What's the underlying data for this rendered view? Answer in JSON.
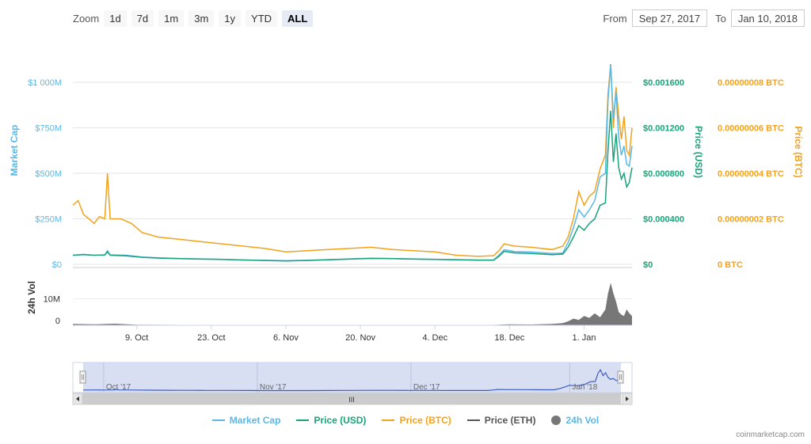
{
  "toolbar": {
    "zoom_label": "Zoom",
    "buttons": [
      "1d",
      "7d",
      "1m",
      "3m",
      "1y",
      "YTD",
      "ALL"
    ],
    "active_index": 6
  },
  "range": {
    "from_label": "From",
    "from_value": "Sep 27, 2017",
    "to_label": "To",
    "to_value": "Jan 10, 2018"
  },
  "colors": {
    "market_cap": "#5ab8e6",
    "price_usd": "#1aa37a",
    "price_btc": "#f4a21c",
    "price_eth": "#555555",
    "volume": "#777777"
  },
  "legend": {
    "market_cap": "Market Cap",
    "price_usd": "Price (USD)",
    "price_btc": "Price (BTC)",
    "price_eth": "Price (ETH)",
    "volume": "24h Vol"
  },
  "credit": "coinmarketcap.com",
  "navigator": {
    "labels": [
      "Oct '17",
      "Nov '17",
      "Dec '17",
      "Jan '18"
    ],
    "scroll_grip": "III"
  },
  "chart_data": {
    "type": "line",
    "x_tick_labels": [
      "9. Oct",
      "23. Oct",
      "6. Nov",
      "20. Nov",
      "4. Dec",
      "18. Dec",
      "1. Jan"
    ],
    "x_tick_days": [
      12,
      26,
      40,
      54,
      68,
      82,
      96
    ],
    "x_range_days": [
      0,
      105
    ],
    "y_axes": {
      "market_cap": {
        "label": "Market Cap",
        "ticks": [
          "$0",
          "$250M",
          "$500M",
          "$750M",
          "$1 000M"
        ],
        "range": [
          0,
          1000
        ]
      },
      "price_usd": {
        "label": "Price (USD)",
        "ticks": [
          "$0",
          "$0.000400",
          "$0.000800",
          "$0.001200",
          "$0.001600"
        ],
        "range": [
          0,
          0.0016
        ]
      },
      "price_btc": {
        "label": "Price (BTC)",
        "ticks": [
          "0 BTC",
          "0.00000002 BTC",
          "0.00000004 BTC",
          "0.00000006 BTC",
          "0.00000008 BTC"
        ],
        "range": [
          0,
          8e-08
        ]
      },
      "volume": {
        "label": "24h Vol",
        "ticks": [
          "0",
          "10M"
        ],
        "range": [
          0,
          20
        ]
      }
    },
    "series": [
      {
        "name": "Market Cap",
        "unit": "$M",
        "points": [
          [
            0,
            50
          ],
          [
            2,
            55
          ],
          [
            4,
            50
          ],
          [
            6,
            52
          ],
          [
            6.5,
            75
          ],
          [
            7,
            52
          ],
          [
            10,
            50
          ],
          [
            13,
            40
          ],
          [
            16,
            36
          ],
          [
            20,
            32
          ],
          [
            24,
            30
          ],
          [
            28,
            28
          ],
          [
            32,
            24
          ],
          [
            36,
            22
          ],
          [
            40,
            20
          ],
          [
            44,
            22
          ],
          [
            48,
            26
          ],
          [
            52,
            30
          ],
          [
            56,
            34
          ],
          [
            60,
            32
          ],
          [
            64,
            30
          ],
          [
            68,
            28
          ],
          [
            72,
            26
          ],
          [
            76,
            24
          ],
          [
            79,
            24
          ],
          [
            80,
            50
          ],
          [
            81,
            80
          ],
          [
            83,
            70
          ],
          [
            86,
            68
          ],
          [
            90,
            60
          ],
          [
            92,
            62
          ],
          [
            93,
            120
          ],
          [
            94,
            200
          ],
          [
            95,
            300
          ],
          [
            96,
            260
          ],
          [
            97,
            300
          ],
          [
            98,
            350
          ],
          [
            99,
            480
          ],
          [
            100,
            500
          ],
          [
            100.5,
            900
          ],
          [
            101,
            1100
          ],
          [
            101.5,
            800
          ],
          [
            102,
            950
          ],
          [
            102.5,
            700
          ],
          [
            103,
            600
          ],
          [
            103.5,
            650
          ],
          [
            104,
            550
          ],
          [
            104.5,
            540
          ],
          [
            105,
            650
          ]
        ]
      },
      {
        "name": "Price (USD)",
        "points": [
          [
            0,
            8e-05
          ],
          [
            2,
            8.5e-05
          ],
          [
            4,
            8e-05
          ],
          [
            6,
            8.2e-05
          ],
          [
            6.5,
            0.00011
          ],
          [
            7,
            8e-05
          ],
          [
            10,
            7.5e-05
          ],
          [
            13,
            6.2e-05
          ],
          [
            16,
            5.5e-05
          ],
          [
            20,
            5e-05
          ],
          [
            24,
            4.6e-05
          ],
          [
            28,
            4.3e-05
          ],
          [
            32,
            3.8e-05
          ],
          [
            36,
            3.4e-05
          ],
          [
            40,
            3e-05
          ],
          [
            44,
            3.4e-05
          ],
          [
            48,
            4e-05
          ],
          [
            52,
            4.6e-05
          ],
          [
            56,
            5.2e-05
          ],
          [
            60,
            5e-05
          ],
          [
            64,
            4.6e-05
          ],
          [
            68,
            4.3e-05
          ],
          [
            72,
            4e-05
          ],
          [
            76,
            3.7e-05
          ],
          [
            79,
            3.7e-05
          ],
          [
            80,
            7e-05
          ],
          [
            81,
            0.000115
          ],
          [
            83,
            0.0001
          ],
          [
            86,
            9.5e-05
          ],
          [
            90,
            8.5e-05
          ],
          [
            92,
            9e-05
          ],
          [
            93,
            0.00015
          ],
          [
            94,
            0.00024
          ],
          [
            95,
            0.00034
          ],
          [
            96,
            0.0003
          ],
          [
            97,
            0.00036
          ],
          [
            98,
            0.0004
          ],
          [
            99,
            0.00052
          ],
          [
            100,
            0.00054
          ],
          [
            100.5,
            0.001
          ],
          [
            101,
            0.00135
          ],
          [
            101.5,
            0.0009
          ],
          [
            102,
            0.00115
          ],
          [
            102.5,
            0.00085
          ],
          [
            103,
            0.00075
          ],
          [
            103.5,
            0.0008
          ],
          [
            104,
            0.00068
          ],
          [
            104.5,
            0.00072
          ],
          [
            105,
            0.00085
          ]
        ]
      },
      {
        "name": "Price (BTC)",
        "points": [
          [
            0,
            2.6e-08
          ],
          [
            1,
            2.8e-08
          ],
          [
            2,
            2.2e-08
          ],
          [
            3,
            2e-08
          ],
          [
            4,
            1.8e-08
          ],
          [
            5,
            2.1e-08
          ],
          [
            6,
            2e-08
          ],
          [
            6.5,
            4e-08
          ],
          [
            7,
            2e-08
          ],
          [
            9,
            2e-08
          ],
          [
            11,
            1.8e-08
          ],
          [
            13,
            1.4e-08
          ],
          [
            16,
            1.2e-08
          ],
          [
            20,
            1.1e-08
          ],
          [
            24,
            1e-08
          ],
          [
            28,
            9e-09
          ],
          [
            32,
            8e-09
          ],
          [
            36,
            7e-09
          ],
          [
            40,
            5.5e-09
          ],
          [
            44,
            6e-09
          ],
          [
            48,
            6.5e-09
          ],
          [
            52,
            7e-09
          ],
          [
            56,
            7.5e-09
          ],
          [
            60,
            6.5e-09
          ],
          [
            64,
            6e-09
          ],
          [
            68,
            5.5e-09
          ],
          [
            72,
            4e-09
          ],
          [
            76,
            3.5e-09
          ],
          [
            79,
            3.8e-09
          ],
          [
            80,
            6e-09
          ],
          [
            81,
            9e-09
          ],
          [
            83,
            8e-09
          ],
          [
            86,
            7.5e-09
          ],
          [
            90,
            6.5e-09
          ],
          [
            92,
            8e-09
          ],
          [
            93,
            1.2e-08
          ],
          [
            94,
            2e-08
          ],
          [
            95,
            3.2e-08
          ],
          [
            96,
            2.6e-08
          ],
          [
            97,
            3e-08
          ],
          [
            98,
            3.2e-08
          ],
          [
            99,
            4.2e-08
          ],
          [
            100,
            4.8e-08
          ],
          [
            100.5,
            7.5e-08
          ],
          [
            101,
            8.8e-08
          ],
          [
            101.5,
            6e-08
          ],
          [
            102,
            7.8e-08
          ],
          [
            102.5,
            6.5e-08
          ],
          [
            103,
            5.5e-08
          ],
          [
            103.5,
            6.5e-08
          ],
          [
            104,
            5e-08
          ],
          [
            104.5,
            4.8e-08
          ],
          [
            105,
            6e-08
          ]
        ]
      }
    ],
    "volume_series": {
      "name": "24h Vol",
      "unit": "M",
      "points": [
        [
          0,
          0.5
        ],
        [
          4,
          0.4
        ],
        [
          8,
          0.6
        ],
        [
          12,
          0.2
        ],
        [
          30,
          0.1
        ],
        [
          60,
          0.1
        ],
        [
          78,
          0.1
        ],
        [
          82,
          0.4
        ],
        [
          86,
          0.3
        ],
        [
          90,
          0.5
        ],
        [
          92,
          0.8
        ],
        [
          93,
          1.5
        ],
        [
          94,
          2.5
        ],
        [
          95,
          2.0
        ],
        [
          96,
          3.5
        ],
        [
          97,
          2.8
        ],
        [
          98,
          4.5
        ],
        [
          99,
          3.0
        ],
        [
          100,
          6.0
        ],
        [
          100.5,
          12.0
        ],
        [
          101,
          16.0
        ],
        [
          101.5,
          12.0
        ],
        [
          102,
          9.0
        ],
        [
          102.5,
          5.0
        ],
        [
          103,
          4.0
        ],
        [
          103.5,
          3.5
        ],
        [
          104,
          6.0
        ],
        [
          104.5,
          4.5
        ],
        [
          105,
          3.5
        ]
      ]
    },
    "legend_position": "bottom-center"
  }
}
